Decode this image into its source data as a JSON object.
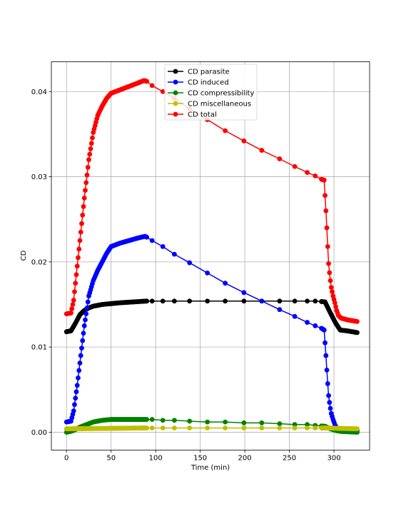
{
  "chart_data": {
    "type": "line",
    "title": "",
    "xlabel": "Time (min)",
    "ylabel": "CD",
    "xlim": [
      -17,
      340
    ],
    "ylim": [
      -0.0021,
      0.0435
    ],
    "xticks": [
      0,
      50,
      100,
      150,
      200,
      250,
      300
    ],
    "yticks": [
      0.0,
      0.01,
      0.02,
      0.03,
      0.04
    ],
    "xtick_labels": [
      "0",
      "50",
      "100",
      "150",
      "200",
      "250",
      "300"
    ],
    "ytick_labels": [
      "0.00",
      "0.01",
      "0.02",
      "0.03",
      "0.04"
    ],
    "grid": true,
    "legend": "top-center",
    "series": [
      {
        "name": "CD parasite",
        "color": "#000000",
        "knots": [
          [
            0,
            0.0118
          ],
          [
            5,
            0.0119
          ],
          [
            10,
            0.0128
          ],
          [
            15,
            0.0138
          ],
          [
            20,
            0.0143
          ],
          [
            25,
            0.0146
          ],
          [
            30,
            0.0148
          ],
          [
            40,
            0.015
          ],
          [
            50,
            0.0151
          ],
          [
            60,
            0.0152
          ],
          [
            75,
            0.0153
          ],
          [
            90,
            0.0154
          ],
          [
            100,
            0.0154
          ],
          [
            200,
            0.0154
          ],
          [
            280,
            0.0154
          ],
          [
            290,
            0.0153
          ],
          [
            296,
            0.014
          ],
          [
            302,
            0.0128
          ],
          [
            307,
            0.012
          ],
          [
            315,
            0.0119
          ],
          [
            326,
            0.0117
          ]
        ],
        "points": [
          [
            96,
            0.0154
          ],
          [
            108,
            0.0154
          ],
          [
            121,
            0.0154
          ],
          [
            138,
            0.0154
          ],
          [
            158,
            0.0154
          ],
          [
            178,
            0.0154
          ],
          [
            199,
            0.0154
          ],
          [
            219,
            0.0154
          ],
          [
            239,
            0.0154
          ],
          [
            256,
            0.0154
          ],
          [
            270,
            0.0154
          ],
          [
            279,
            0.0154
          ]
        ]
      },
      {
        "name": "CD induced",
        "color": "#0000ff",
        "knots": [
          [
            0,
            0.0012
          ],
          [
            5,
            0.0013
          ],
          [
            8,
            0.0025
          ],
          [
            12,
            0.0055
          ],
          [
            16,
            0.009
          ],
          [
            20,
            0.0125
          ],
          [
            25,
            0.016
          ],
          [
            30,
            0.0178
          ],
          [
            35,
            0.019
          ],
          [
            40,
            0.02
          ],
          [
            45,
            0.021
          ],
          [
            50,
            0.0218
          ],
          [
            55,
            0.022
          ],
          [
            60,
            0.0222
          ],
          [
            70,
            0.0225
          ],
          [
            80,
            0.0228
          ],
          [
            88,
            0.023
          ],
          [
            92,
            0.0228
          ],
          [
            96,
            0.0225
          ],
          [
            108,
            0.0218
          ],
          [
            121,
            0.0209
          ],
          [
            138,
            0.0199
          ],
          [
            158,
            0.0187
          ],
          [
            178,
            0.0175
          ],
          [
            199,
            0.0164
          ],
          [
            219,
            0.0154
          ],
          [
            239,
            0.0144
          ],
          [
            256,
            0.0136
          ],
          [
            270,
            0.0129
          ],
          [
            279,
            0.0125
          ],
          [
            286,
            0.0122
          ],
          [
            289,
            0.012
          ],
          [
            290,
            0.0105
          ],
          [
            291,
            0.009
          ],
          [
            292,
            0.0073
          ],
          [
            293,
            0.0057
          ],
          [
            294,
            0.0043
          ],
          [
            295.5,
            0.0031
          ],
          [
            297,
            0.0022
          ],
          [
            299,
            0.0015
          ],
          [
            301,
            0.0009
          ],
          [
            303,
            0.0005
          ],
          [
            305,
            0.0003
          ],
          [
            310,
            0.0002
          ],
          [
            326,
            0.0002
          ]
        ],
        "points": [
          [
            96,
            0.0225
          ],
          [
            108,
            0.0218
          ],
          [
            121,
            0.0209
          ],
          [
            138,
            0.0199
          ],
          [
            158,
            0.0187
          ],
          [
            178,
            0.0175
          ],
          [
            199,
            0.0164
          ],
          [
            219,
            0.0154
          ],
          [
            239,
            0.0144
          ],
          [
            256,
            0.0136
          ],
          [
            270,
            0.0129
          ],
          [
            279,
            0.0125
          ]
        ]
      },
      {
        "name": "CD compressibility",
        "color": "#008000",
        "knots": [
          [
            0,
            0.0
          ],
          [
            5,
            0.0001
          ],
          [
            10,
            0.0003
          ],
          [
            15,
            0.0006
          ],
          [
            20,
            0.0008
          ],
          [
            25,
            0.001
          ],
          [
            30,
            0.0012
          ],
          [
            40,
            0.0014
          ],
          [
            50,
            0.0015
          ],
          [
            90,
            0.0015
          ],
          [
            96,
            0.0015
          ],
          [
            121,
            0.0014
          ],
          [
            158,
            0.0012
          ],
          [
            199,
            0.0011
          ],
          [
            239,
            0.001
          ],
          [
            279,
            0.0008
          ],
          [
            290,
            0.0007
          ],
          [
            296,
            0.0004
          ],
          [
            302,
            0.0002
          ],
          [
            307,
            0.0001
          ],
          [
            326,
            0.0
          ]
        ],
        "points": [
          [
            96,
            0.0015
          ],
          [
            108,
            0.0014
          ],
          [
            121,
            0.0014
          ],
          [
            138,
            0.0013
          ],
          [
            158,
            0.0012
          ],
          [
            178,
            0.0012
          ],
          [
            199,
            0.0011
          ],
          [
            219,
            0.0011
          ],
          [
            239,
            0.001
          ],
          [
            256,
            0.0009
          ],
          [
            270,
            0.0009
          ],
          [
            279,
            0.0008
          ]
        ]
      },
      {
        "name": "CD miscellaneous",
        "color": "#bfbf00",
        "knots": [
          [
            0,
            0.0004
          ],
          [
            90,
            0.0005
          ],
          [
            200,
            0.0005
          ],
          [
            290,
            0.0005
          ],
          [
            326,
            0.0004
          ]
        ],
        "points": [
          [
            96,
            0.0005
          ],
          [
            108,
            0.0005
          ],
          [
            121,
            0.0005
          ],
          [
            138,
            0.0005
          ],
          [
            158,
            0.0005
          ],
          [
            178,
            0.0005
          ],
          [
            199,
            0.0005
          ],
          [
            219,
            0.0005
          ],
          [
            239,
            0.0005
          ],
          [
            256,
            0.0005
          ],
          [
            270,
            0.0005
          ],
          [
            279,
            0.0005
          ]
        ]
      },
      {
        "name": "CD total",
        "color": "#ff0000",
        "knots": [
          [
            0,
            0.0139
          ],
          [
            5,
            0.014
          ],
          [
            8,
            0.0155
          ],
          [
            12,
            0.0195
          ],
          [
            16,
            0.0235
          ],
          [
            20,
            0.0275
          ],
          [
            25,
            0.032
          ],
          [
            30,
            0.0352
          ],
          [
            35,
            0.0372
          ],
          [
            40,
            0.0383
          ],
          [
            45,
            0.0392
          ],
          [
            50,
            0.0398
          ],
          [
            60,
            0.0402
          ],
          [
            70,
            0.0406
          ],
          [
            80,
            0.041
          ],
          [
            87,
            0.0413
          ],
          [
            90,
            0.0412
          ],
          [
            96,
            0.0407
          ],
          [
            108,
            0.04
          ],
          [
            121,
            0.0392
          ],
          [
            138,
            0.038
          ],
          [
            158,
            0.0367
          ],
          [
            178,
            0.0354
          ],
          [
            199,
            0.0342
          ],
          [
            219,
            0.0331
          ],
          [
            239,
            0.0321
          ],
          [
            256,
            0.0312
          ],
          [
            270,
            0.0305
          ],
          [
            279,
            0.0301
          ],
          [
            286,
            0.0297
          ],
          [
            289,
            0.0296
          ],
          [
            290,
            0.0278
          ],
          [
            291,
            0.026
          ],
          [
            292,
            0.024
          ],
          [
            293,
            0.0218
          ],
          [
            294,
            0.0198
          ],
          [
            295.5,
            0.0182
          ],
          [
            297,
            0.017
          ],
          [
            299,
            0.016
          ],
          [
            301,
            0.0152
          ],
          [
            303,
            0.0143
          ],
          [
            305,
            0.0137
          ],
          [
            308,
            0.0134
          ],
          [
            315,
            0.0132
          ],
          [
            326,
            0.013
          ]
        ],
        "points": [
          [
            96,
            0.0407
          ],
          [
            108,
            0.04
          ],
          [
            121,
            0.0392
          ],
          [
            138,
            0.038
          ],
          [
            158,
            0.0367
          ],
          [
            178,
            0.0354
          ],
          [
            199,
            0.0342
          ],
          [
            219,
            0.0331
          ],
          [
            239,
            0.0321
          ],
          [
            256,
            0.0312
          ],
          [
            270,
            0.0305
          ],
          [
            279,
            0.0301
          ]
        ]
      }
    ]
  }
}
